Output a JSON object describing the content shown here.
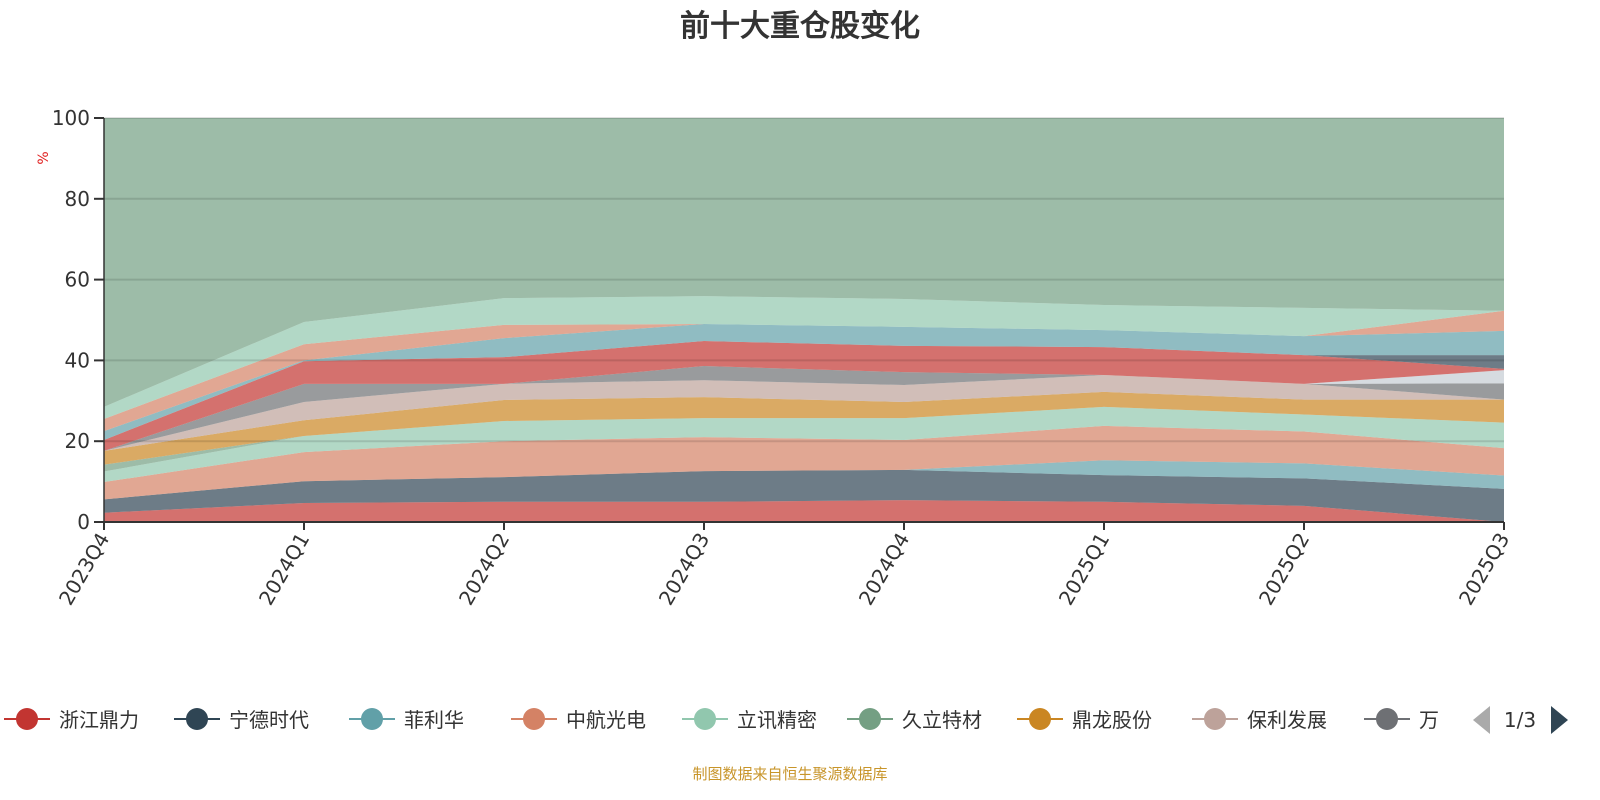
{
  "chart_data": {
    "type": "area",
    "stacked": true,
    "title": "前十大重仓股变化",
    "ylabel": "%",
    "xlabel": "",
    "ylim": [
      0,
      100
    ],
    "yticks": [
      "0",
      "20",
      "40",
      "60",
      "80",
      "100"
    ],
    "categories": [
      "2023Q4",
      "2024Q1",
      "2024Q2",
      "2024Q3",
      "2024Q4",
      "2025Q1",
      "2025Q2",
      "2025Q3"
    ],
    "grid": true,
    "legend_position": "bottom",
    "series": [
      {
        "name": "浙江鼎力",
        "color": "#c23531",
        "values": [
          2.3,
          4.7,
          5,
          5,
          5.4,
          5,
          4,
          0
        ]
      },
      {
        "name": "宁德时代",
        "color": "#2f4554",
        "values": [
          3.3,
          5.4,
          6.1,
          7.6,
          7.5,
          6.6,
          6.8,
          8.2
        ]
      },
      {
        "name": "菲利华",
        "color": "#61a0a8",
        "values": [
          0,
          0,
          0,
          0,
          0,
          3.7,
          3.7,
          3.3
        ]
      },
      {
        "name": "中航光电",
        "color": "#d48265",
        "values": [
          4.3,
          7.2,
          8.9,
          8.4,
          7.4,
          8.5,
          7.9,
          6.8
        ]
      },
      {
        "name": "立讯精密",
        "color": "#91c7ae",
        "values": [
          2.6,
          4,
          5,
          4.7,
          5.4,
          4.7,
          4.2,
          6.3
        ]
      },
      {
        "name": "久立特材",
        "color": "#749f83",
        "values": [
          1.7,
          0,
          0,
          0,
          0,
          0,
          0,
          0
        ]
      },
      {
        "name": "鼎龙股份",
        "color": "#ca8622",
        "values": [
          3.4,
          3.9,
          5.2,
          5.2,
          4,
          3.7,
          3.7,
          5.7
        ]
      },
      {
        "name": "保利发展",
        "color": "#bda29a",
        "values": [
          0,
          4.5,
          4,
          4.2,
          4.2,
          4.2,
          3.9,
          0
        ]
      },
      {
        "name": "万",
        "color": "#6e7074",
        "values": [
          0,
          4.5,
          0,
          3.5,
          3.2,
          0,
          0,
          4
        ]
      },
      {
        "name": "",
        "color": "#c4ccd3",
        "values": [
          0,
          0,
          0,
          0,
          0,
          0,
          0,
          3.3
        ]
      },
      {
        "name": "",
        "color": "#c23531",
        "values": [
          2.7,
          5.6,
          6.6,
          6.2,
          6.5,
          6.9,
          7.1,
          0.3
        ]
      },
      {
        "name": "",
        "color": "#2f4554",
        "values": [
          0,
          0,
          0,
          0,
          0,
          0,
          0,
          3.4
        ]
      },
      {
        "name": "",
        "color": "#61a0a8",
        "values": [
          2.2,
          0.2,
          4.7,
          4.2,
          4.7,
          4.2,
          4.7,
          6
        ]
      },
      {
        "name": "",
        "color": "#d48265",
        "values": [
          3,
          4,
          3.3,
          0,
          0,
          0,
          0,
          5
        ]
      },
      {
        "name": "",
        "color": "#91c7ae",
        "values": [
          3,
          5.5,
          6.6,
          6.9,
          6.9,
          6.2,
          7,
          0
        ]
      },
      {
        "name": "",
        "color": "#749f83",
        "values": [
          71.5,
          50.5,
          44.6,
          44.1,
          44.8,
          46.3,
          47,
          47.7
        ]
      }
    ],
    "legend_visible": [
      "浙江鼎力",
      "宁德时代",
      "菲利华",
      "中航光电",
      "立讯精密",
      "久立特材",
      "鼎龙股份",
      "保利发展",
      "万"
    ]
  },
  "legend_pager": {
    "text": "1/3"
  },
  "footer": "制图数据来自恒生聚源数据库"
}
